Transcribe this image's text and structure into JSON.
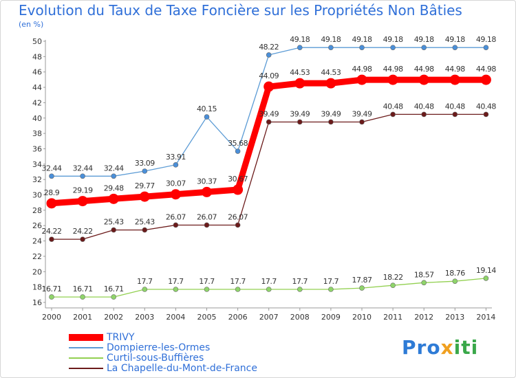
{
  "title": "Evolution du Taux de Taxe Foncière sur les Propriétés Non Bâties",
  "subtitle": "(en %)",
  "logo_text": "Proxiti",
  "colors": {
    "accent": "#2f6fd8",
    "series": [
      "#ff0000",
      "#5b9bd5",
      "#92d050",
      "#6b1a1a"
    ],
    "marker_fill": [
      "#ff0000",
      "#4a8fd9",
      "#8fd46a",
      "#6b1a1a"
    ]
  },
  "chart_data": {
    "type": "line",
    "title": "Evolution du Taux de Taxe Foncière sur les Propriétés Non Bâties",
    "ylabel": "(en %)",
    "xlabel": "",
    "categories": [
      "2000",
      "2001",
      "2002",
      "2003",
      "2004",
      "2005",
      "2006",
      "2007",
      "2008",
      "2009",
      "2010",
      "2011",
      "2012",
      "2013",
      "2014"
    ],
    "ylim": [
      16,
      50
    ],
    "yticks": [
      16,
      18,
      20,
      22,
      24,
      26,
      28,
      30,
      32,
      34,
      36,
      38,
      40,
      42,
      44,
      46,
      48,
      50
    ],
    "grid": false,
    "legend_position": "bottom-left",
    "series": [
      {
        "name": "TRIVY",
        "values": [
          28.9,
          29.19,
          29.48,
          29.77,
          30.07,
          30.37,
          30.67,
          44.09,
          44.53,
          44.53,
          44.98,
          44.98,
          44.98,
          44.98,
          44.98
        ],
        "labels": [
          "28.9",
          "29.19",
          "29.48",
          "29.77",
          "30.07",
          "30.37",
          "30.67",
          "44.09",
          "44.53",
          "44.53",
          "44.98",
          "44.98",
          "44.98",
          "44.98",
          "44.98"
        ]
      },
      {
        "name": "Dompierre-les-Ormes",
        "values": [
          32.44,
          32.44,
          32.44,
          33.09,
          33.91,
          40.15,
          35.68,
          48.22,
          49.18,
          49.18,
          49.18,
          49.18,
          49.18,
          49.18,
          49.18
        ],
        "labels": [
          "32.44",
          "32.44",
          "32.44",
          "33.09",
          "33.91",
          "40.15",
          "35.68",
          "48.22",
          "49.18",
          "49.18",
          "49.18",
          "49.18",
          "49.18",
          "49.18",
          "49.18"
        ]
      },
      {
        "name": "Curtil-sous-Buffières",
        "values": [
          16.71,
          16.71,
          16.71,
          17.7,
          17.7,
          17.7,
          17.7,
          17.7,
          17.7,
          17.7,
          17.87,
          18.22,
          18.57,
          18.76,
          19.14
        ],
        "labels": [
          "16.71",
          "16.71",
          "16.71",
          "17.7",
          "17.7",
          "17.7",
          "17.7",
          "17.7",
          "17.7",
          "17.7",
          "17.87",
          "18.22",
          "18.57",
          "18.76",
          "19.14"
        ]
      },
      {
        "name": "La Chapelle-du-Mont-de-France",
        "values": [
          24.22,
          24.22,
          25.43,
          25.43,
          26.07,
          26.07,
          26.07,
          39.49,
          39.49,
          39.49,
          39.49,
          40.48,
          40.48,
          40.48,
          40.48
        ],
        "labels": [
          "24.22",
          "24.22",
          "25.43",
          "25.43",
          "26.07",
          "26.07",
          "26.07",
          "39.49",
          "39.49",
          "39.49",
          "39.49",
          "40.48",
          "40.48",
          "40.48",
          "40.48"
        ]
      }
    ]
  }
}
